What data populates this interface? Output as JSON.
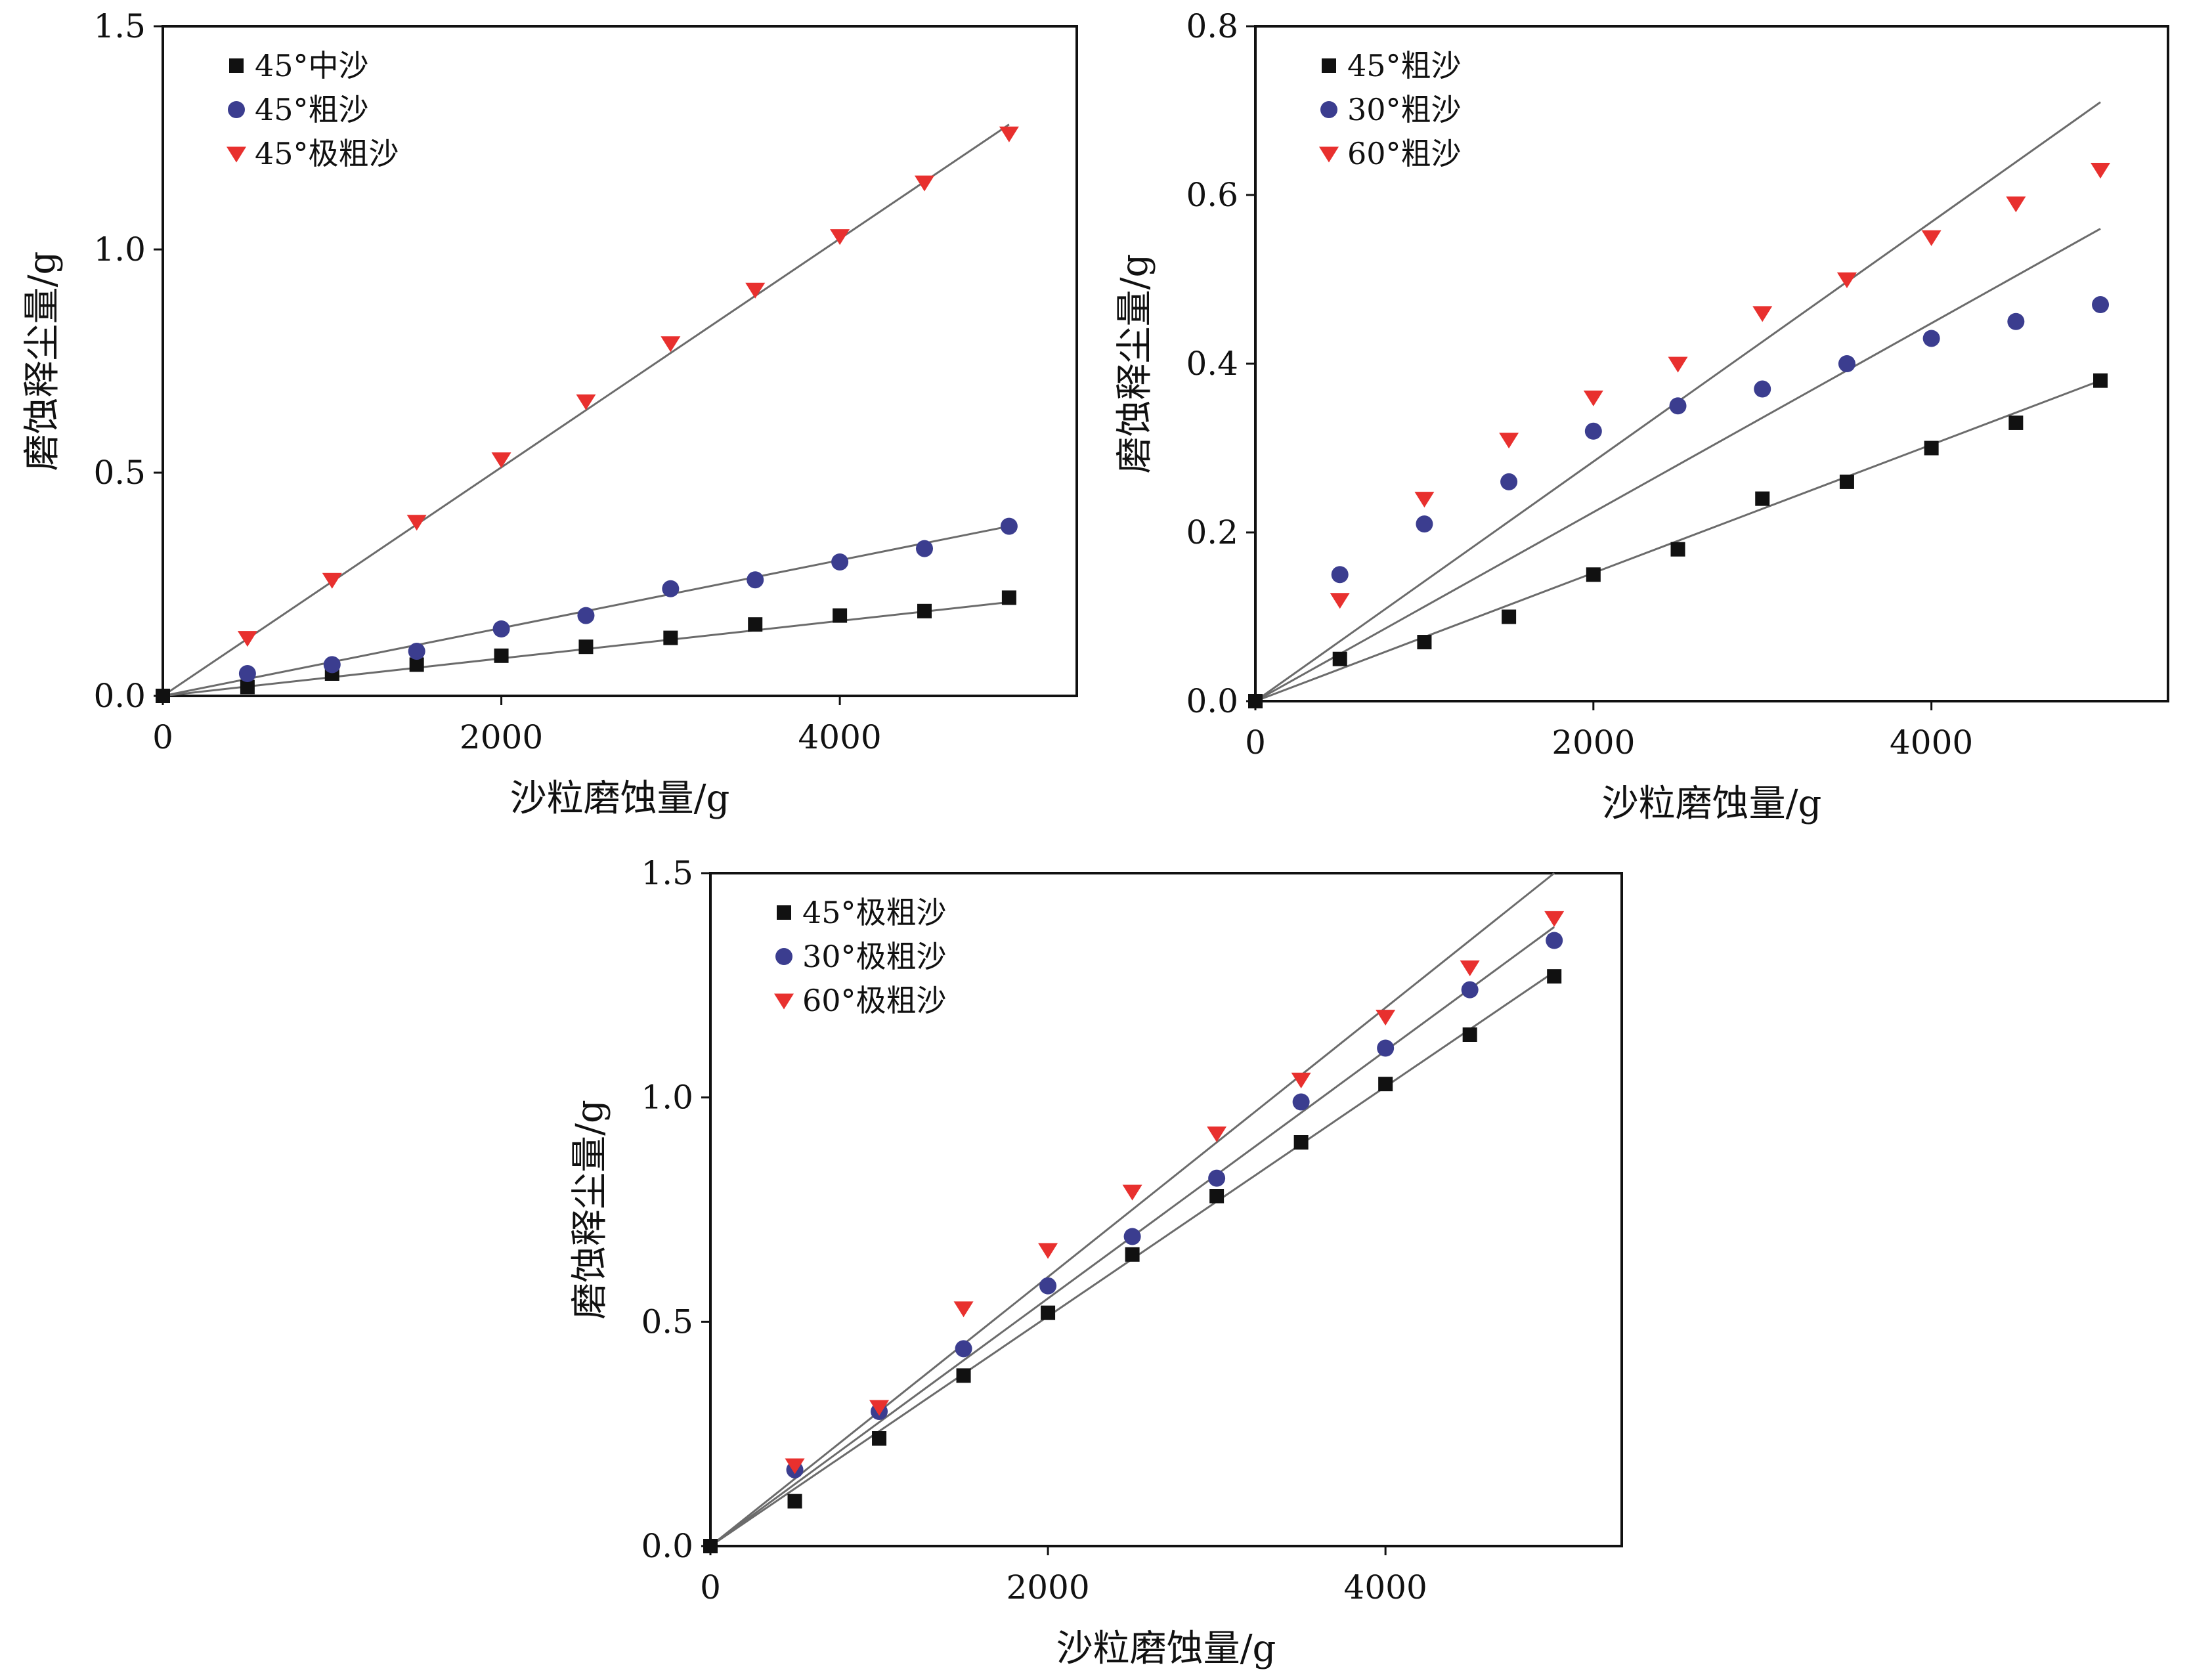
{
  "colors": {
    "black_series": "#111111",
    "blue_series": "#3b3d8f",
    "red_series": "#e8302e",
    "fit_line": "#6b6b6b",
    "axes": "#111111"
  },
  "chart_data": [
    {
      "type": "scatter",
      "panel": "top-left",
      "xlabel": "沙粒磨蚀量/g",
      "ylabel": "磨蚀释尘量/g",
      "xlim": [
        0,
        5400
      ],
      "ylim": [
        0,
        1.5
      ],
      "xticks": [
        0,
        2000,
        4000
      ],
      "xtick_labels": [
        "0",
        "2000",
        "4000"
      ],
      "yticks": [
        0,
        0.5,
        1.0,
        1.5
      ],
      "ytick_labels": [
        "0.0",
        "0.5",
        "1.0",
        "1.5"
      ],
      "legend_position": "top-left",
      "grid": false,
      "x": [
        500,
        1000,
        1500,
        2000,
        2500,
        3000,
        3500,
        4000,
        4500,
        5000
      ],
      "series": [
        {
          "name": "45°中沙",
          "marker": "square",
          "color": "#111111",
          "values": [
            0.02,
            0.05,
            0.07,
            0.09,
            0.11,
            0.13,
            0.16,
            0.18,
            0.19,
            0.22
          ],
          "fit": [
            [
              0,
              0
            ],
            [
              5000,
              0.21
            ]
          ]
        },
        {
          "name": "45°粗沙",
          "marker": "circle",
          "color": "#3b3d8f",
          "values": [
            0.05,
            0.07,
            0.1,
            0.15,
            0.18,
            0.24,
            0.26,
            0.3,
            0.33,
            0.38
          ],
          "fit": [
            [
              0,
              0
            ],
            [
              5000,
              0.38
            ]
          ]
        },
        {
          "name": "45°极粗沙",
          "marker": "triangle-down",
          "color": "#e8302e",
          "values": [
            0.13,
            0.26,
            0.39,
            0.53,
            0.66,
            0.79,
            0.91,
            1.03,
            1.15,
            1.26
          ],
          "fit": [
            [
              0,
              0
            ],
            [
              5000,
              1.28
            ]
          ]
        }
      ]
    },
    {
      "type": "scatter",
      "panel": "top-right",
      "xlabel": "沙粒磨蚀量/g",
      "ylabel": "磨蚀释尘量/g",
      "xlim": [
        0,
        5400
      ],
      "ylim": [
        0,
        0.8
      ],
      "xticks": [
        0,
        2000,
        4000
      ],
      "xtick_labels": [
        "0",
        "2000",
        "4000"
      ],
      "yticks": [
        0,
        0.2,
        0.4,
        0.6,
        0.8
      ],
      "ytick_labels": [
        "0.0",
        "0.2",
        "0.4",
        "0.6",
        "0.8"
      ],
      "legend_position": "top-left",
      "grid": false,
      "x": [
        500,
        1000,
        1500,
        2000,
        2500,
        3000,
        3500,
        4000,
        4500,
        5000
      ],
      "series": [
        {
          "name": "45°粗沙",
          "marker": "square",
          "color": "#111111",
          "values": [
            0.05,
            0.07,
            0.1,
            0.15,
            0.18,
            0.24,
            0.26,
            0.3,
            0.33,
            0.38
          ],
          "fit": [
            [
              0,
              0
            ],
            [
              5000,
              0.38
            ]
          ]
        },
        {
          "name": "30°粗沙",
          "marker": "circle",
          "color": "#3b3d8f",
          "values": [
            0.15,
            0.21,
            0.26,
            0.32,
            0.35,
            0.37,
            0.4,
            0.43,
            0.45,
            0.47
          ],
          "fit": [
            [
              0,
              0
            ],
            [
              5000,
              0.56
            ]
          ]
        },
        {
          "name": "60°粗沙",
          "marker": "triangle-down",
          "color": "#e8302e",
          "values": [
            0.12,
            0.24,
            0.31,
            0.36,
            0.4,
            0.46,
            0.5,
            0.55,
            0.59,
            0.63
          ],
          "fit": [
            [
              0,
              0
            ],
            [
              5000,
              0.71
            ]
          ]
        }
      ]
    },
    {
      "type": "scatter",
      "panel": "bottom-center",
      "xlabel": "沙粒磨蚀量/g",
      "ylabel": "磨蚀释尘量/g",
      "xlim": [
        0,
        5400
      ],
      "ylim": [
        0,
        1.5
      ],
      "xticks": [
        0,
        2000,
        4000
      ],
      "xtick_labels": [
        "0",
        "2000",
        "4000"
      ],
      "yticks": [
        0,
        0.5,
        1.0,
        1.5
      ],
      "ytick_labels": [
        "0.0",
        "0.5",
        "1.0",
        "1.5"
      ],
      "legend_position": "top-left",
      "grid": false,
      "x": [
        500,
        1000,
        1500,
        2000,
        2500,
        3000,
        3500,
        4000,
        4500,
        5000
      ],
      "series": [
        {
          "name": "45°极粗沙",
          "marker": "square",
          "color": "#111111",
          "values": [
            0.1,
            0.24,
            0.38,
            0.52,
            0.65,
            0.78,
            0.9,
            1.03,
            1.14,
            1.27
          ],
          "fit": [
            [
              0,
              0
            ],
            [
              5000,
              1.28
            ]
          ]
        },
        {
          "name": "30°极粗沙",
          "marker": "circle",
          "color": "#3b3d8f",
          "values": [
            0.17,
            0.3,
            0.44,
            0.58,
            0.69,
            0.82,
            0.99,
            1.11,
            1.24,
            1.35
          ],
          "fit": [
            [
              0,
              0
            ],
            [
              5000,
              1.38
            ]
          ]
        },
        {
          "name": "60°极粗沙",
          "marker": "triangle-down",
          "color": "#e8302e",
          "values": [
            0.18,
            0.31,
            0.53,
            0.66,
            0.79,
            0.92,
            1.04,
            1.18,
            1.29,
            1.4
          ],
          "fit": [
            [
              0,
              0
            ],
            [
              5000,
              1.5
            ]
          ]
        }
      ]
    }
  ]
}
